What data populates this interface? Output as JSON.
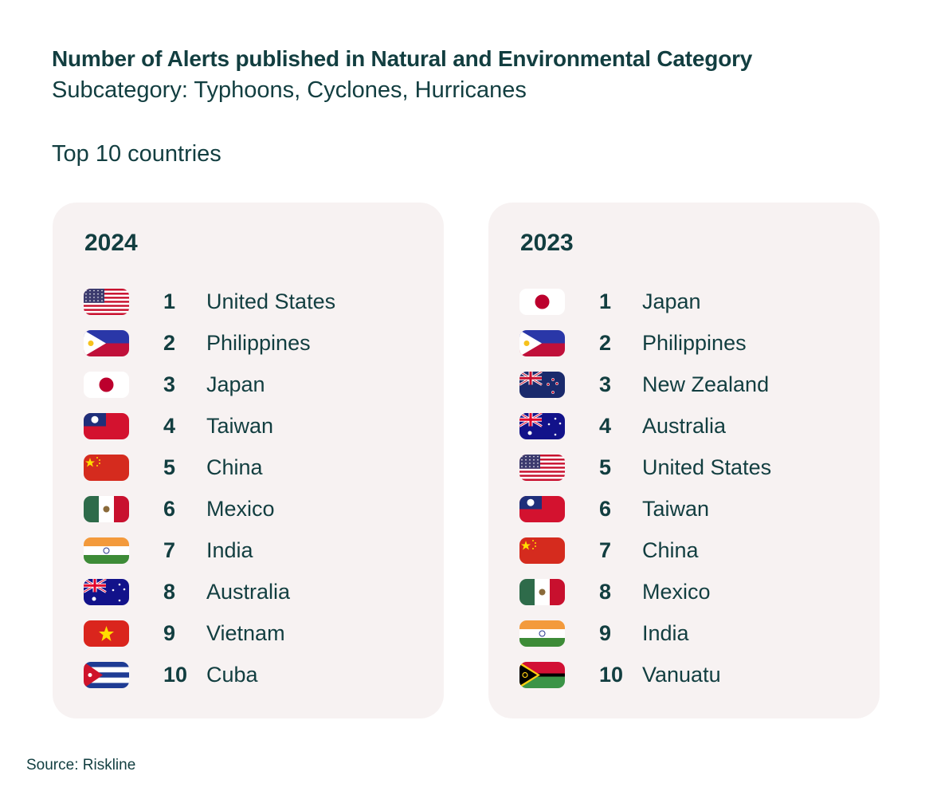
{
  "title": "Number of Alerts published in Natural and Environmental Category",
  "subtitle": "Subcategory: Typhoons, Cyclones, Hurricanes",
  "section_label": "Top 10 countries",
  "panels": [
    {
      "year": "2024",
      "items": [
        {
          "rank": "1",
          "country": "United States",
          "flag": "us"
        },
        {
          "rank": "2",
          "country": "Philippines",
          "flag": "ph"
        },
        {
          "rank": "3",
          "country": "Japan",
          "flag": "jp"
        },
        {
          "rank": "4",
          "country": "Taiwan",
          "flag": "tw"
        },
        {
          "rank": "5",
          "country": "China",
          "flag": "cn"
        },
        {
          "rank": "6",
          "country": "Mexico",
          "flag": "mx"
        },
        {
          "rank": "7",
          "country": "India",
          "flag": "in"
        },
        {
          "rank": "8",
          "country": "Australia",
          "flag": "au"
        },
        {
          "rank": "9",
          "country": "Vietnam",
          "flag": "vn"
        },
        {
          "rank": "10",
          "country": "Cuba",
          "flag": "cu"
        }
      ]
    },
    {
      "year": "2023",
      "items": [
        {
          "rank": "1",
          "country": "Japan",
          "flag": "jp"
        },
        {
          "rank": "2",
          "country": "Philippines",
          "flag": "ph"
        },
        {
          "rank": "3",
          "country": "New Zealand",
          "flag": "nz"
        },
        {
          "rank": "4",
          "country": "Australia",
          "flag": "au"
        },
        {
          "rank": "5",
          "country": "United States",
          "flag": "us"
        },
        {
          "rank": "6",
          "country": "Taiwan",
          "flag": "tw"
        },
        {
          "rank": "7",
          "country": "China",
          "flag": "cn"
        },
        {
          "rank": "8",
          "country": "Mexico",
          "flag": "mx"
        },
        {
          "rank": "9",
          "country": "India",
          "flag": "in"
        },
        {
          "rank": "10",
          "country": "Vanuatu",
          "flag": "vu"
        }
      ]
    }
  ],
  "source": "Source: Riskline",
  "colors": {
    "text": "#123e40",
    "card_bg": "#f7f2f2"
  }
}
